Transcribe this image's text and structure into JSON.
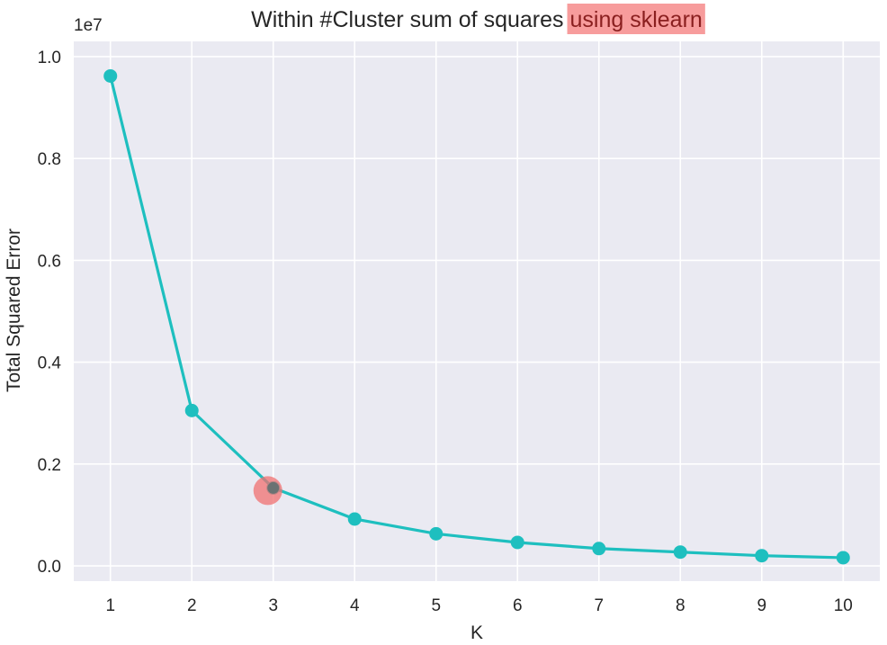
{
  "chart_data": {
    "type": "line",
    "title": "Within #Cluster sum of squares",
    "title_highlight": "using sklearn",
    "xlabel": "K",
    "ylabel": "Total Squared Error",
    "y_multiplier": "1e7",
    "x": [
      1,
      2,
      3,
      4,
      5,
      6,
      7,
      8,
      9,
      10
    ],
    "series": [
      {
        "values": [
          9620000,
          3050000,
          1530000,
          920000,
          630000,
          460000,
          340000,
          270000,
          200000,
          160000
        ]
      }
    ],
    "xticks": [
      "1",
      "2",
      "3",
      "4",
      "5",
      "6",
      "7",
      "8",
      "9",
      "10"
    ],
    "yticks": [
      {
        "value": 0,
        "label": "0.0"
      },
      {
        "value": 2000000,
        "label": "0.2"
      },
      {
        "value": 4000000,
        "label": "0.4"
      },
      {
        "value": 6000000,
        "label": "0.6"
      },
      {
        "value": 8000000,
        "label": "0.8"
      },
      {
        "value": 10000000,
        "label": "1.0"
      }
    ],
    "xlim": [
      0.55,
      10.45
    ],
    "ylim": [
      -300000,
      10300000
    ],
    "grid": true,
    "highlighted_point": {
      "x": 3,
      "y": 1530000
    },
    "colors": {
      "series": "#1ebfbf",
      "plot_bg": "#eaeaf2",
      "grid": "#ffffff",
      "highlight_marker": "#f07070",
      "title_highlight_bg": "#f79c9c"
    }
  }
}
